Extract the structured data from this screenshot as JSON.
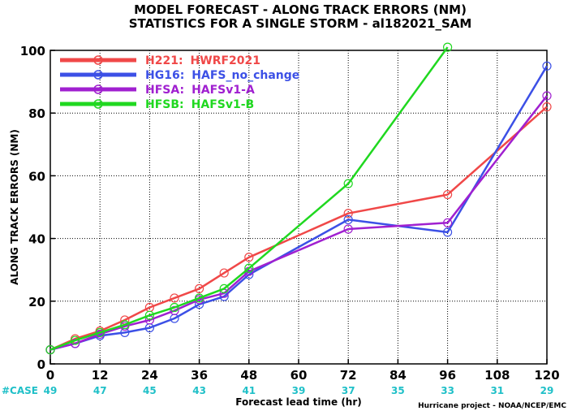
{
  "chart_data": {
    "type": "line",
    "title_lines": [
      "MODEL FORECAST - ALONG TRACK ERRORS (NM)",
      "STATISTICS FOR A SINGLE STORM - al182021_SAM"
    ],
    "xlabel": "Forecast lead time (hr)",
    "ylabel": "ALONG TRACK ERRORS (NM)",
    "xlim": [
      0,
      120
    ],
    "ylim": [
      0,
      100
    ],
    "xticks": [
      0,
      12,
      24,
      36,
      48,
      60,
      72,
      84,
      96,
      108,
      120
    ],
    "yticks": [
      0,
      20,
      40,
      60,
      80,
      100
    ],
    "legend_position": "top-left",
    "case_row": {
      "label": "#CASE",
      "x": [
        0,
        12,
        24,
        36,
        48,
        60,
        72,
        84,
        96,
        108,
        120
      ],
      "counts": [
        "49",
        "47",
        "45",
        "43",
        "41",
        "39",
        "37",
        "35",
        "33",
        "31",
        "29"
      ],
      "color": "#20c0c8"
    },
    "credit": "Hurricane project - NOAA/NCEP/EMC",
    "series": [
      {
        "code": "H221:",
        "name": "HWRF2021",
        "color": "#f04848",
        "x": [
          0,
          6,
          12,
          18,
          24,
          30,
          36,
          42,
          48,
          72,
          96,
          120
        ],
        "y": [
          4.5,
          8,
          10.5,
          14,
          18,
          21,
          24,
          29,
          34,
          48,
          54,
          82
        ]
      },
      {
        "code": "HG16:",
        "name": "HAFS_no_change",
        "color": "#3c50e6",
        "x": [
          0,
          6,
          12,
          18,
          24,
          30,
          36,
          42,
          48,
          72,
          96,
          120
        ],
        "y": [
          4.5,
          6.5,
          9,
          10,
          11.5,
          14.5,
          19,
          21.5,
          28.5,
          46,
          42,
          95
        ]
      },
      {
        "code": "HFSA:",
        "name": "HAFSv1-A",
        "color": "#a020d0",
        "x": [
          0,
          6,
          12,
          18,
          24,
          30,
          36,
          42,
          48,
          72,
          96,
          120
        ],
        "y": [
          4.5,
          6.5,
          9.5,
          12,
          14,
          17,
          20.5,
          22.5,
          29.5,
          43,
          45,
          85.5
        ]
      },
      {
        "code": "HFSB:",
        "name": "HAFSv1-B",
        "color": "#20d820",
        "x": [
          0,
          6,
          12,
          18,
          24,
          30,
          36,
          42,
          48,
          72,
          96
        ],
        "y": [
          4.5,
          7.5,
          10,
          12.5,
          15.5,
          18,
          21,
          24,
          30.5,
          57.5,
          101
        ]
      }
    ]
  }
}
